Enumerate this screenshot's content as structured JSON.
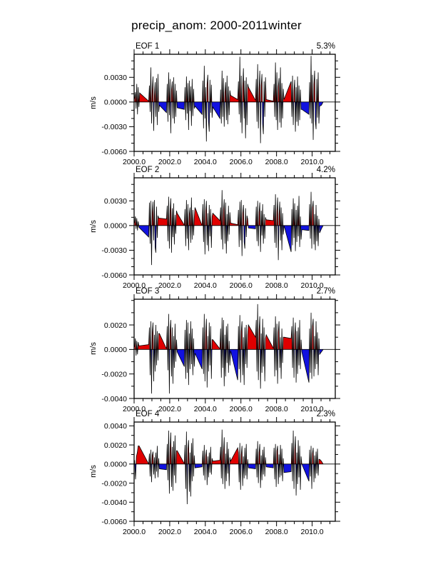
{
  "page": {
    "title": "precip_anom: 2000-2011winter",
    "background": "#ffffff"
  },
  "colors": {
    "positive_fill": "#e00000",
    "negative_fill": "#1212e0",
    "line": "#000000",
    "axis": "#000000"
  },
  "value_unit_note": "cluster values are in units of 0.001 m/s",
  "chart_data": [
    {
      "type": "area",
      "title": "EOF 1",
      "variance_label": "5.3%",
      "ylabel": "m/s",
      "xlim": [
        2000,
        2011.3
      ],
      "xticks": [
        2000,
        2002,
        2004,
        2006,
        2008,
        2010
      ],
      "xtick_labels": [
        "2000.0",
        "2002.0",
        "2004.0",
        "2006.0",
        "2008.0",
        "2010.0"
      ],
      "x_minor_step": 0.5,
      "ylim_milli": [
        -6.0,
        5.8
      ],
      "ymajors_milli": [
        3,
        0,
        -3,
        -6
      ],
      "ytick_labels": [
        "0.0030",
        "0.0000",
        "-0.0030",
        "-0.0060"
      ],
      "y_minor_step_milli": 1,
      "grid": false,
      "clusters": [
        {
          "x0": 2000.03,
          "dx": 0.04,
          "v": [
            0.4,
            1.2,
            -0.8,
            2.2,
            -1.5,
            1.8,
            -0.6,
            1.1
          ]
        },
        {
          "x0": 2000.82,
          "dx": 0.04,
          "v": [
            0.1,
            2.0,
            -1.2,
            4.2,
            -2.6,
            1.4,
            3.1,
            -3.5,
            0.8,
            2.4,
            -1.8,
            2.9,
            -2.8,
            3.4,
            -1.2,
            -0.4
          ]
        },
        {
          "x0": 2001.82,
          "dx": 0.04,
          "v": [
            -1.3,
            2.2,
            -2.4,
            3.6,
            -1.6,
            2.8,
            -3.8,
            1.5,
            2.5,
            -2.0,
            3.0,
            -2.6,
            2.2,
            -1.8,
            1.4,
            -0.7
          ]
        },
        {
          "x0": 2002.82,
          "dx": 0.04,
          "v": [
            -0.9,
            1.8,
            -2.2,
            3.1,
            -1.4,
            2.3,
            -3.4,
            2.6,
            -1.1,
            1.9,
            -2.9,
            2.8,
            -1.7,
            1.6,
            -0.8,
            -0.5
          ]
        },
        {
          "x0": 2003.82,
          "dx": 0.04,
          "v": [
            -1.5,
            2.6,
            -3.2,
            4.4,
            -2.0,
            1.8,
            -4.8,
            2.2,
            3.3,
            -2.4,
            -3.6,
            2.7,
            -1.3,
            2.1,
            -1.9,
            -0.6
          ]
        },
        {
          "x0": 2004.82,
          "dx": 0.04,
          "v": [
            -2.0,
            1.5,
            -2.6,
            3.8,
            -1.8,
            2.9,
            -3.0,
            1.2,
            2.4,
            -2.2,
            3.2,
            -2.7,
            1.9,
            -1.6,
            1.4,
            0.8
          ]
        },
        {
          "x0": 2005.82,
          "dx": 0.04,
          "v": [
            0.3,
            2.5,
            -1.5,
            5.5,
            -2.5,
            3.2,
            -3.8,
            1.8,
            4.1,
            -2.0,
            2.6,
            -4.4,
            3.0,
            -2.8,
            2.2,
            1.8
          ]
        },
        {
          "x0": 2006.82,
          "dx": 0.04,
          "v": [
            0.2,
            2.8,
            -2.4,
            4.6,
            -3.2,
            1.6,
            3.8,
            -5.0,
            2.0,
            3.4,
            -2.6,
            -3.9,
            2.5,
            -1.8,
            3.0,
            0.3
          ]
        },
        {
          "x0": 2007.82,
          "dx": 0.04,
          "v": [
            0.1,
            2.2,
            -1.8,
            4.8,
            -2.2,
            3.6,
            -3.4,
            1.9,
            2.9,
            -2.5,
            4.2,
            -3.1,
            2.3,
            -2.0,
            1.6,
            0.3
          ]
        },
        {
          "x0": 2008.82,
          "dx": 0.04,
          "v": [
            2.5,
            -1.8,
            3.2,
            -2.8,
            1.4,
            2.7,
            -3.6,
            1.8,
            -2.4,
            3.1,
            -2.9,
            2.0,
            -2.2,
            1.5,
            -0.9,
            -0.9
          ]
        },
        {
          "x0": 2009.82,
          "dx": 0.04,
          "v": [
            -1.5,
            2.4,
            -2.0,
            5.6,
            -2.6,
            3.3,
            -4.6,
            2.1,
            3.8,
            -2.3,
            -3.3,
            2.8,
            -1.9,
            3.6,
            -2.6,
            -0.5
          ]
        },
        {
          "x0": 2010.52,
          "dx": 0.1,
          "v": [
            -0.4,
            0.0
          ]
        }
      ]
    },
    {
      "type": "area",
      "title": "EOF 2",
      "variance_label": "4.2%",
      "ylabel": "m/s",
      "xlim": [
        2000,
        2011.3
      ],
      "xticks": [
        2000,
        2002,
        2004,
        2006,
        2008,
        2010
      ],
      "xtick_labels": [
        "2000.0",
        "2002.0",
        "2004.0",
        "2006.0",
        "2008.0",
        "2010.0"
      ],
      "x_minor_step": 0.5,
      "ylim_milli": [
        -6.0,
        5.8
      ],
      "ymajors_milli": [
        3,
        0,
        -3,
        -6
      ],
      "ytick_labels": [
        "0.0030",
        "0.0000",
        "-0.0030",
        "-0.0060"
      ],
      "y_minor_step_milli": 1,
      "grid": false,
      "clusters": [
        {
          "x0": 2000.03,
          "dx": 0.04,
          "v": [
            0.3,
            1.1,
            -0.4,
            0.9,
            -0.6,
            0.5,
            -0.2,
            -0.3
          ]
        },
        {
          "x0": 2000.82,
          "dx": 0.04,
          "v": [
            -1.4,
            2.8,
            -2.2,
            3.0,
            -4.8,
            1.6,
            2.9,
            -1.8,
            3.1,
            -2.6,
            -3.3,
            2.3,
            -1.5,
            1.2,
            0.9,
            0.9
          ]
        },
        {
          "x0": 2001.82,
          "dx": 0.04,
          "v": [
            0.8,
            2.4,
            -1.9,
            3.5,
            -2.8,
            1.7,
            3.3,
            -3.3,
            2.1,
            -1.4,
            2.7,
            -2.3,
            1.3,
            -1.0,
            1.8,
            1.5
          ]
        },
        {
          "x0": 2002.82,
          "dx": 0.04,
          "v": [
            0.05,
            2.0,
            -2.5,
            3.1,
            -1.6,
            2.6,
            -3.0,
            1.4,
            2.2,
            -2.1,
            3.4,
            -1.7,
            1.9,
            -1.2,
            1.0,
            2.2
          ]
        },
        {
          "x0": 2003.82,
          "dx": 0.04,
          "v": [
            0.0,
            2.6,
            -2.0,
            3.2,
            -3.5,
            1.8,
            3.0,
            -2.4,
            1.5,
            -3.1,
            2.5,
            -1.3,
            2.0,
            -2.7,
            1.1,
            1.5
          ]
        },
        {
          "x0": 2004.82,
          "dx": 0.04,
          "v": [
            0.6,
            2.2,
            -1.7,
            4.3,
            -2.9,
            1.9,
            3.2,
            -2.2,
            2.8,
            -3.4,
            1.4,
            -1.9,
            2.4,
            -1.1,
            1.6,
            0.3
          ]
        },
        {
          "x0": 2005.82,
          "dx": 0.04,
          "v": [
            0.1,
            1.9,
            -2.6,
            2.9,
            -1.8,
            3.1,
            -3.7,
            1.5,
            2.5,
            -2.0,
            -2.8,
            2.1,
            -1.4,
            1.2,
            0.8,
            -0.3
          ]
        },
        {
          "x0": 2006.82,
          "dx": 0.04,
          "v": [
            -0.4,
            2.3,
            -1.9,
            3.0,
            -2.5,
            1.6,
            2.8,
            -3.2,
            1.8,
            -1.2,
            2.6,
            -2.2,
            1.4,
            -1.6,
            1.0,
            0.7
          ]
        },
        {
          "x0": 2007.82,
          "dx": 0.04,
          "v": [
            0.6,
            2.5,
            -2.1,
            3.8,
            -2.7,
            1.7,
            3.4,
            -4.2,
            1.3,
            2.9,
            -1.8,
            2.2,
            -3.0,
            1.5,
            -1.1,
            0.0
          ]
        },
        {
          "x0": 2008.82,
          "dx": 0.04,
          "v": [
            -3.2,
            2.0,
            -2.4,
            3.3,
            -1.5,
            2.7,
            -3.1,
            1.9,
            -2.0,
            2.4,
            -1.3,
            3.6,
            -2.6,
            1.1,
            -1.7,
            -0.5
          ]
        },
        {
          "x0": 2009.82,
          "dx": 0.04,
          "v": [
            -0.6,
            2.6,
            -1.6,
            4.1,
            -2.8,
            2.2,
            3.0,
            -2.3,
            1.4,
            -3.0,
            2.5,
            -1.9,
            1.2,
            -2.5,
            0.8,
            -0.9
          ]
        },
        {
          "x0": 2010.52,
          "dx": 0.1,
          "v": [
            -0.4,
            0.0
          ]
        }
      ]
    },
    {
      "type": "area",
      "title": "EOF 3",
      "variance_label": "2.7%",
      "ylabel": "m/s",
      "xlim": [
        2000,
        2011.3
      ],
      "xticks": [
        2000,
        2002,
        2004,
        2006,
        2008,
        2010
      ],
      "xtick_labels": [
        "2000.0",
        "2002.0",
        "2004.0",
        "2006.0",
        "2008.0",
        "2010.0"
      ],
      "x_minor_step": 0.5,
      "ylim_milli": [
        -4.0,
        4.1
      ],
      "ymajors_milli": [
        2,
        0,
        -2,
        -4
      ],
      "ytick_labels": [
        "0.0020",
        "0.0000",
        "-0.0020",
        "-0.0040"
      ],
      "y_minor_step_milli": 1,
      "grid": false,
      "clusters": [
        {
          "x0": 2000.03,
          "dx": 0.04,
          "v": [
            0.2,
            0.9,
            -0.5,
            0.7,
            -0.4,
            0.6,
            0.3,
            0.3
          ]
        },
        {
          "x0": 2000.82,
          "dx": 0.04,
          "v": [
            0.4,
            1.8,
            -2.1,
            2.3,
            -3.6,
            1.4,
            2.2,
            -2.6,
            1.2,
            -1.8,
            2.0,
            -1.3,
            1.5,
            -0.9,
            1.3,
            1.3
          ]
        },
        {
          "x0": 2001.82,
          "dx": 0.04,
          "v": [
            0.05,
            1.9,
            -1.7,
            2.9,
            -3.6,
            1.5,
            2.4,
            -2.2,
            1.8,
            -2.8,
            1.1,
            -1.5,
            2.1,
            -1.0,
            0.8,
            -0.2
          ]
        },
        {
          "x0": 2002.82,
          "dx": 0.04,
          "v": [
            -1.4,
            1.6,
            -2.4,
            2.4,
            -1.9,
            2.2,
            -2.9,
            1.3,
            -1.6,
            2.3,
            -1.2,
            1.7,
            -2.1,
            0.9,
            -1.4,
            -0.3
          ]
        },
        {
          "x0": 2003.82,
          "dx": 0.04,
          "v": [
            -1.6,
            1.8,
            -2.0,
            2.9,
            -2.6,
            1.4,
            2.5,
            -3.1,
            1.1,
            -1.8,
            2.2,
            -1.3,
            1.9,
            -2.4,
            0.8,
            0.8
          ]
        },
        {
          "x0": 2004.82,
          "dx": 0.04,
          "v": [
            0.05,
            1.7,
            -2.3,
            2.6,
            -1.5,
            2.4,
            -3.0,
            1.2,
            -2.2,
            1.9,
            -1.1,
            2.1,
            -1.9,
            0.7,
            -1.3,
            -0.1
          ]
        },
        {
          "x0": 2005.82,
          "dx": 0.04,
          "v": [
            -2.5,
            1.9,
            -1.6,
            2.8,
            -2.7,
            1.5,
            2.3,
            -2.1,
            1.0,
            -2.9,
            1.8,
            -1.2,
            2.0,
            -1.5,
            1.2,
            2.0
          ]
        },
        {
          "x0": 2006.82,
          "dx": 0.04,
          "v": [
            1.0,
            2.4,
            -1.8,
            3.7,
            -2.5,
            1.6,
            2.7,
            -3.2,
            1.3,
            -1.9,
            2.5,
            -1.4,
            1.8,
            -2.6,
            0.9,
            1.2
          ]
        },
        {
          "x0": 2007.82,
          "dx": 0.04,
          "v": [
            0.1,
            1.8,
            -2.2,
            2.7,
            -1.7,
            2.1,
            -2.8,
            1.4,
            2.3,
            -1.5,
            1.0,
            -2.4,
            1.7,
            -1.1,
            1.0,
            1.0
          ]
        },
        {
          "x0": 2008.82,
          "dx": 0.04,
          "v": [
            0.9,
            1.9,
            -1.5,
            2.6,
            -2.3,
            1.2,
            2.2,
            -2.7,
            1.5,
            -2.0,
            1.8,
            -1.3,
            2.4,
            -1.6,
            0.8,
            -0.2
          ]
        },
        {
          "x0": 2009.82,
          "dx": 0.04,
          "v": [
            -2.7,
            1.7,
            -1.9,
            3.0,
            -2.4,
            1.9,
            2.5,
            -2.2,
            1.1,
            -1.6,
            2.3,
            -1.2,
            1.4,
            -2.1,
            0.9,
            -0.4
          ]
        },
        {
          "x0": 2010.52,
          "dx": 0.1,
          "v": [
            -0.2,
            0.0
          ]
        }
      ]
    },
    {
      "type": "area",
      "title": "EOF 4",
      "variance_label": "2.3%",
      "ylabel": "m/s",
      "xlim": [
        2000,
        2011.3
      ],
      "xticks": [
        2000,
        2002,
        2004,
        2006,
        2008,
        2010
      ],
      "xtick_labels": [
        "2000.0",
        "2002.0",
        "2004.0",
        "2006.0",
        "2008.0",
        "2010.0"
      ],
      "x_minor_step": 0.5,
      "ylim_milli": [
        -6.0,
        4.4
      ],
      "ymajors_milli": [
        4,
        2,
        0,
        -2,
        -4,
        -6
      ],
      "ytick_labels": [
        "0.0040",
        "0.0020",
        "0.0000",
        "-0.0020",
        "-0.0040",
        "-0.0060"
      ],
      "y_minor_step_milli": 1,
      "grid": false,
      "clusters": [
        {
          "x0": 2000.03,
          "dx": 0.05,
          "v": [
            0.4,
            -1.6,
            0.8,
            1.2,
            1.9,
            1.9
          ]
        },
        {
          "x0": 2000.82,
          "dx": 0.04,
          "v": [
            0.0,
            1.1,
            -1.3,
            1.5,
            -1.9,
            0.9,
            1.3,
            -1.1,
            0.7,
            -1.5,
            1.2,
            -0.8,
            1.9,
            -1.4,
            0.6,
            -0.5
          ]
        },
        {
          "x0": 2001.82,
          "dx": 0.04,
          "v": [
            -0.6,
            2.1,
            -1.7,
            3.5,
            -3.1,
            1.5,
            3.3,
            -2.4,
            1.8,
            -2.8,
            2.4,
            -1.2,
            3.0,
            -2.0,
            1.4,
            1.4
          ]
        },
        {
          "x0": 2002.82,
          "dx": 0.04,
          "v": [
            0.05,
            2.0,
            -2.6,
            3.4,
            -4.2,
            1.6,
            2.5,
            -2.9,
            1.2,
            -3.4,
            2.2,
            -1.8,
            2.7,
            -1.3,
            0.9,
            -0.4
          ]
        },
        {
          "x0": 2003.82,
          "dx": 0.04,
          "v": [
            -0.3,
            1.4,
            -1.2,
            2.0,
            -1.7,
            0.9,
            1.5,
            -2.2,
            0.8,
            -1.4,
            1.2,
            -0.9,
            1.8,
            -1.1,
            0.6,
            0.3
          ]
        },
        {
          "x0": 2004.82,
          "dx": 0.04,
          "v": [
            0.4,
            1.8,
            -1.5,
            3.6,
            -2.1,
            1.3,
            2.8,
            -2.6,
            1.1,
            -1.8,
            2.3,
            -1.0,
            1.6,
            -2.3,
            0.7,
            0.3
          ]
        },
        {
          "x0": 2005.82,
          "dx": 0.04,
          "v": [
            1.7,
            1.2,
            -1.9,
            2.2,
            -2.7,
            1.0,
            1.9,
            -2.3,
            0.8,
            -1.5,
            1.7,
            -1.2,
            2.1,
            -1.6,
            0.5,
            -0.4
          ]
        },
        {
          "x0": 2006.82,
          "dx": 0.04,
          "v": [
            -0.5,
            1.6,
            -1.4,
            2.4,
            -2.0,
            1.2,
            2.1,
            -2.5,
            0.9,
            -1.7,
            1.5,
            -1.1,
            1.8,
            -1.3,
            0.7,
            -0.3
          ]
        },
        {
          "x0": 2007.82,
          "dx": 0.04,
          "v": [
            -0.4,
            1.7,
            -1.6,
            2.1,
            -2.4,
            1.4,
            1.9,
            -2.1,
            1.0,
            -1.4,
            2.0,
            -1.2,
            1.6,
            -1.8,
            0.6,
            -0.9
          ]
        },
        {
          "x0": 2008.82,
          "dx": 0.04,
          "v": [
            -0.8,
            2.2,
            -1.8,
            3.5,
            -2.6,
            1.5,
            2.9,
            -3.3,
            1.2,
            -2.1,
            2.5,
            -1.4,
            1.9,
            -2.7,
            0.8,
            0.0
          ]
        },
        {
          "x0": 2009.82,
          "dx": 0.04,
          "v": [
            -1.8,
            1.5,
            -1.3,
            1.9,
            -2.6,
            1.1,
            1.7,
            -1.9,
            0.9,
            -1.5,
            1.3,
            -1.0,
            1.6,
            -1.2,
            0.5,
            0.5
          ]
        },
        {
          "x0": 2010.52,
          "dx": 0.1,
          "v": [
            0.3,
            0.0
          ]
        }
      ]
    }
  ]
}
